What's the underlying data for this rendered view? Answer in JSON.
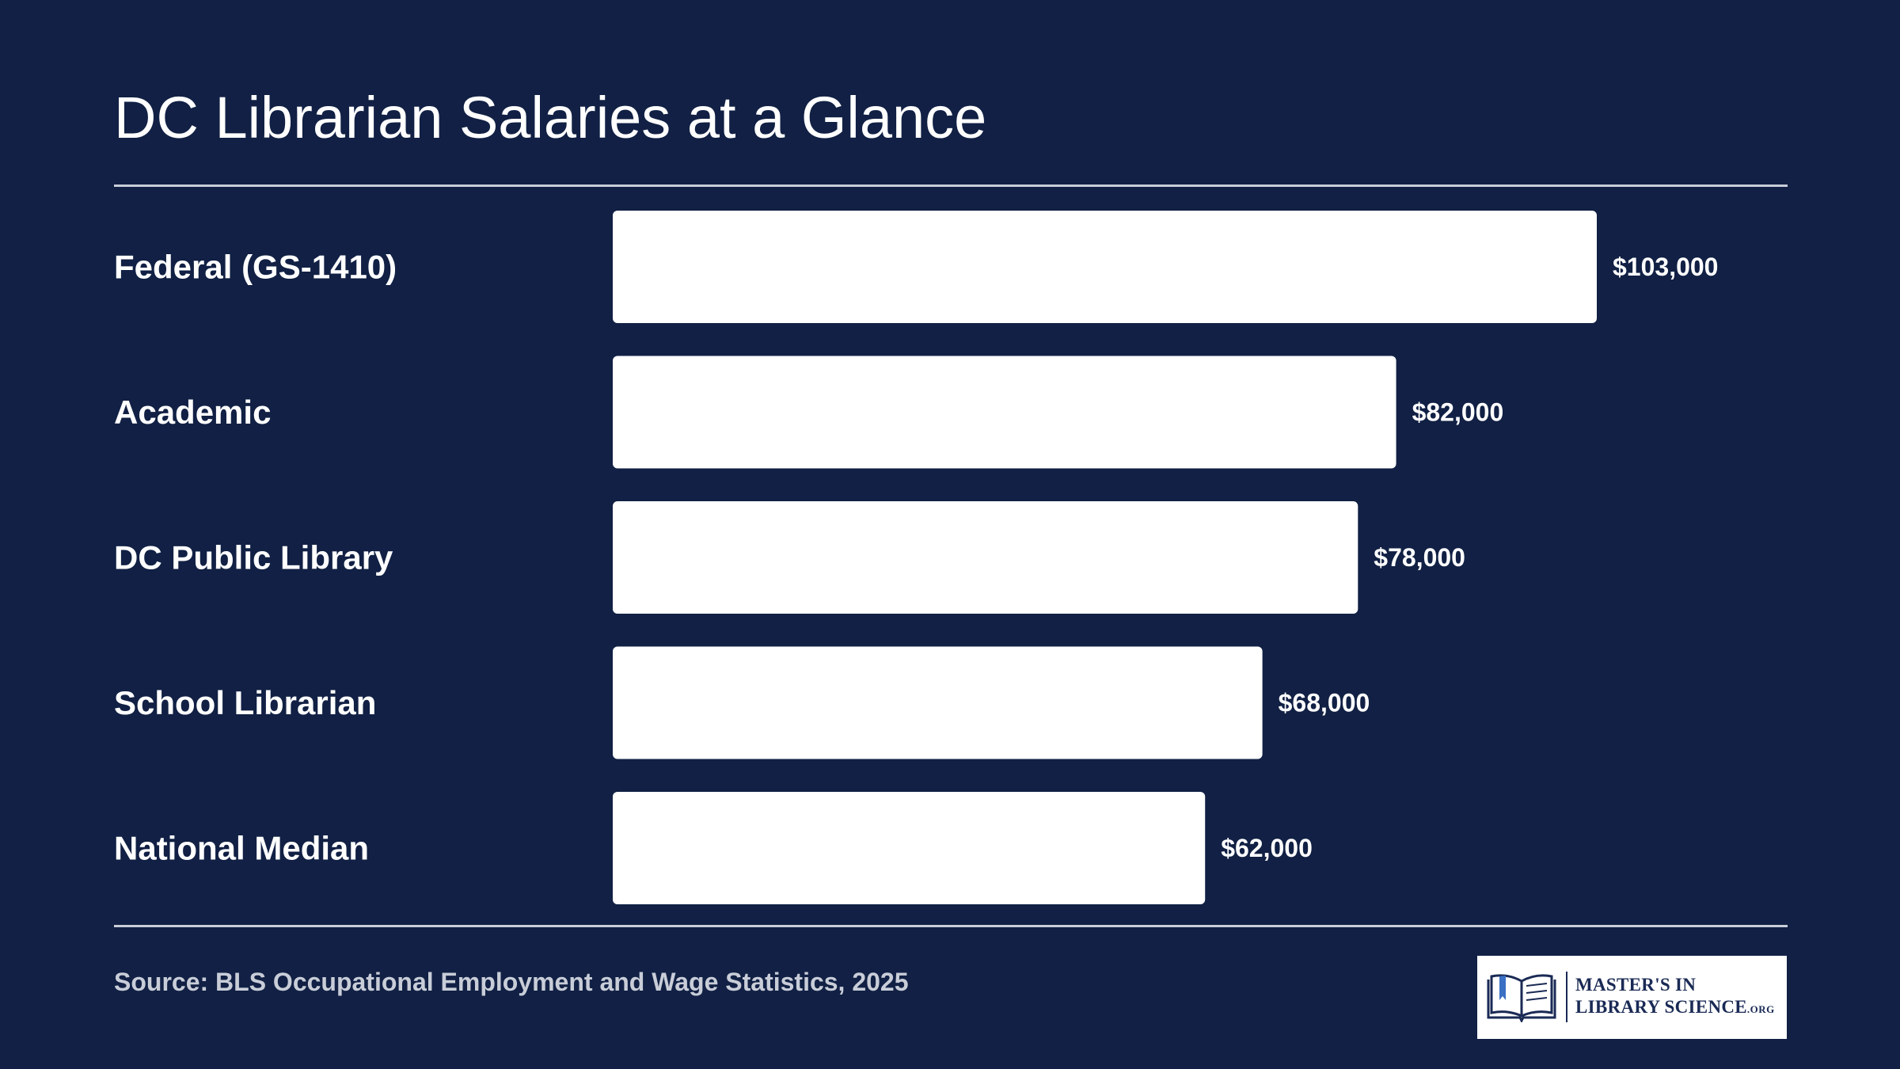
{
  "colors": {
    "background": "#112044",
    "bar": "#ffffff",
    "text": "#ffffff",
    "muted_text": "#c8cdd8",
    "logo_ink": "#1a2a55"
  },
  "source_text": "Source: BLS Occupational Employment and Wage Statistics, 2025",
  "logo": {
    "line1": "MASTER'S IN",
    "line2": "LIBRARY SCIENCE",
    "suffix": ".ORG",
    "icon": "open-book-icon"
  },
  "chart_data": {
    "type": "bar",
    "orientation": "horizontal",
    "title": "DC Librarian Salaries at a Glance",
    "categories": [
      "Federal (GS-1410)",
      "Academic",
      "DC Public Library",
      "School Librarian",
      "National Median"
    ],
    "values": [
      103000,
      82000,
      78000,
      68000,
      62000
    ],
    "value_labels": [
      "$103,000",
      "$82,000",
      "$78,000",
      "$68,000",
      "$62,000"
    ],
    "xlim": [
      0,
      103000
    ],
    "grid": false,
    "legend": "none"
  }
}
